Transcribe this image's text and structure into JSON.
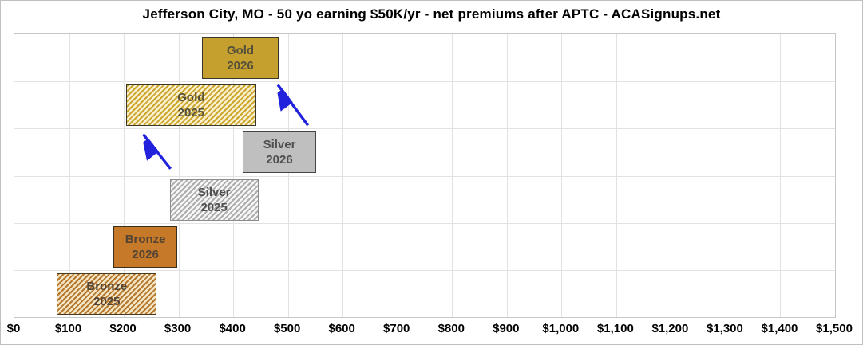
{
  "chart_data": {
    "type": "range-bar",
    "title": "Jefferson City, MO - 50 yo earning $50K/yr - net premiums after APTC - ACASignups.net",
    "xlabel": "",
    "ylabel": "",
    "x_axis": {
      "min": 0,
      "max": 1500,
      "tick_interval": 100,
      "tick_labels": [
        "$0",
        "$100",
        "$200",
        "$300",
        "$400",
        "$500",
        "$600",
        "$700",
        "$800",
        "$900",
        "$1,000",
        "$1,100",
        "$1,200",
        "$1,300",
        "$1,400",
        "$1,500"
      ]
    },
    "grid": true,
    "rows": 6,
    "bars": [
      {
        "label": "Gold 2026",
        "label_lines": [
          "Gold",
          "2026"
        ],
        "row": 0,
        "min": 343,
        "max": 483,
        "style": "solid",
        "fill": "#C6A02F",
        "border": "#3A382C",
        "text_color": "#55503A"
      },
      {
        "label": "Gold 2025",
        "label_lines": [
          "Gold",
          "2025"
        ],
        "row": 1,
        "min": 204,
        "max": 442,
        "style": "striped",
        "stripe_color": "#CDA62E",
        "stripe_bg": "#F8F0CE",
        "border": "#3A382C",
        "text_color": "#55503A"
      },
      {
        "label": "Silver 2026",
        "label_lines": [
          "Silver",
          "2026"
        ],
        "row": 2,
        "min": 417,
        "max": 552,
        "style": "solid",
        "fill": "#BFBFBF",
        "border": "#444444",
        "text_color": "#4F4F4F"
      },
      {
        "label": "Silver 2025",
        "label_lines": [
          "Silver",
          "2025"
        ],
        "row": 3,
        "min": 284,
        "max": 446,
        "style": "striped",
        "stripe_color": "#ADADAD",
        "stripe_bg": "#F6F6F6",
        "border": "#8C8C8C",
        "text_color": "#4F4F4F"
      },
      {
        "label": "Bronze 2026",
        "label_lines": [
          "Bronze",
          "2026"
        ],
        "row": 4,
        "min": 181,
        "max": 298,
        "style": "solid",
        "fill": "#C7792A",
        "border": "#3A2E1C",
        "text_color": "#534433"
      },
      {
        "label": "Bronze 2025",
        "label_lines": [
          "Bronze",
          "2025"
        ],
        "row": 5,
        "min": 78,
        "max": 260,
        "style": "striped",
        "stripe_color": "#B5782F",
        "stripe_bg": "#F3E4C3",
        "border": "#4A3A22",
        "text_color": "#534433"
      }
    ],
    "arrows": [
      {
        "name": "arrow-silver-2026-to-gold-2026",
        "color": "#2222DD",
        "from": {
          "dollars": 538,
          "row": 1.95
        },
        "to": {
          "dollars": 483,
          "row": 1.09
        }
      },
      {
        "name": "arrow-silver-2025-to-gold-2025",
        "color": "#2222DD",
        "from": {
          "dollars": 287,
          "row": 2.87
        },
        "to": {
          "dollars": 237,
          "row": 2.14
        }
      }
    ],
    "colors": {
      "gridline": "#E2E2E2",
      "plot_border": "#C6C6C6",
      "axis_text": "#000000",
      "arrow_blue": "#2222DD"
    }
  }
}
